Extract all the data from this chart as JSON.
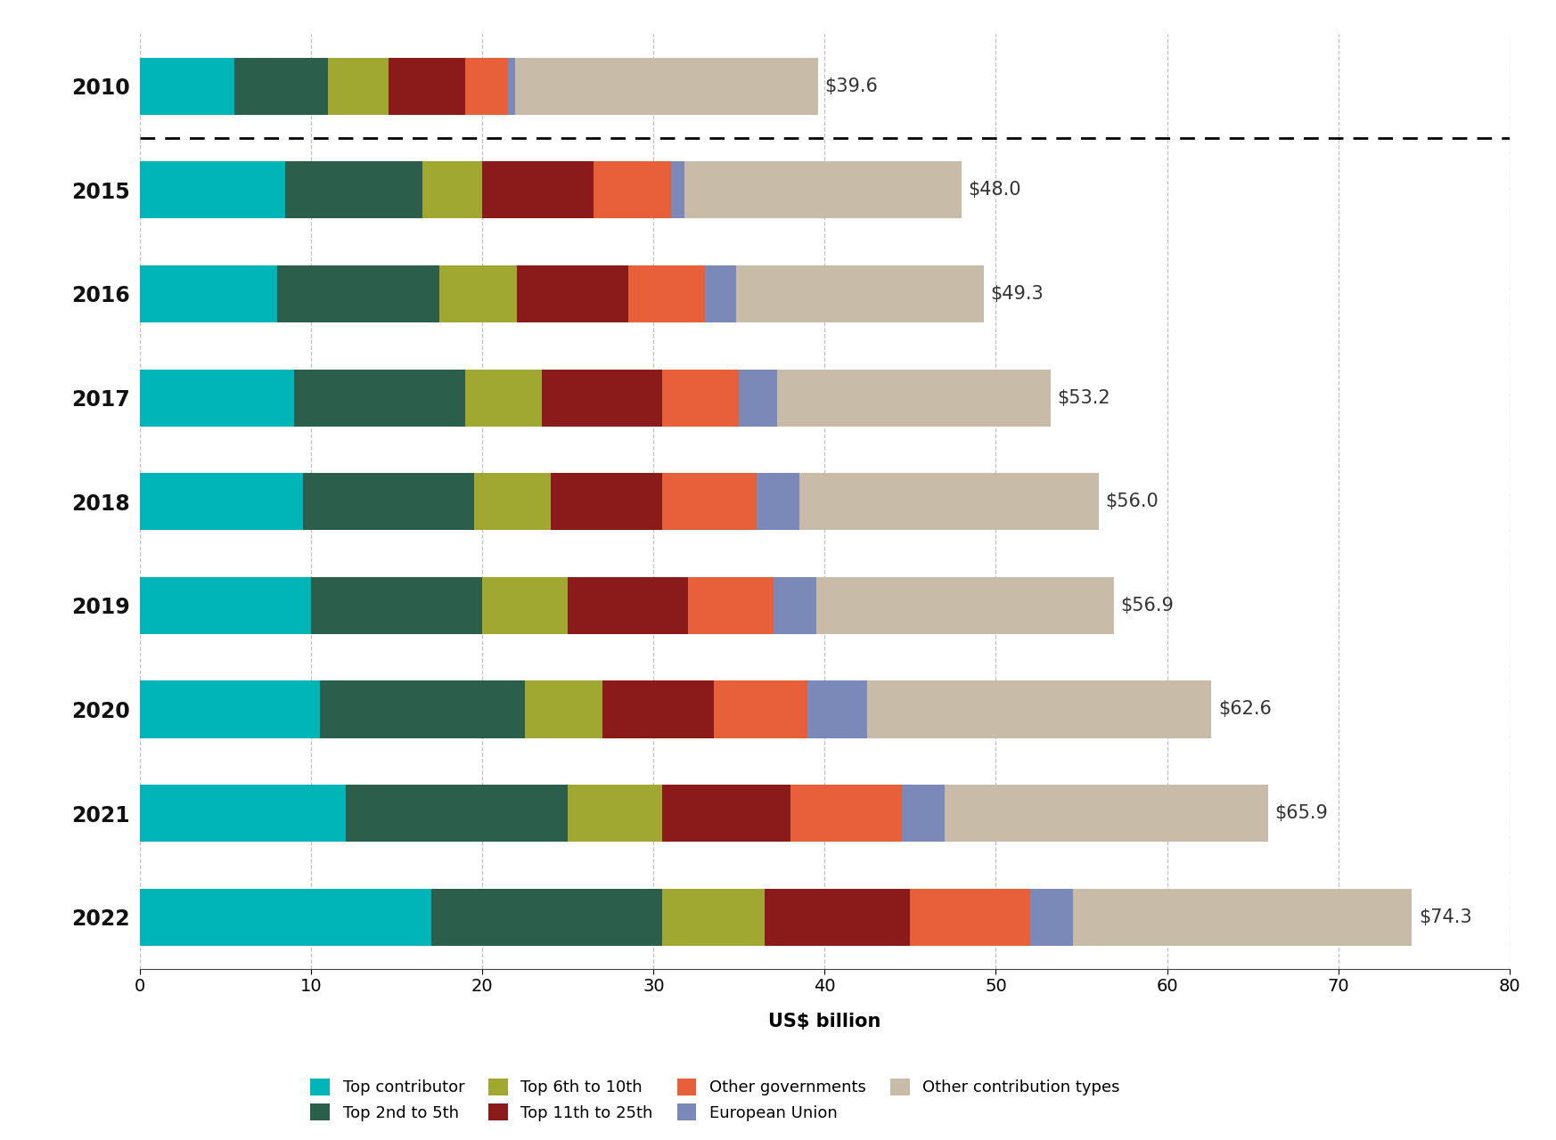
{
  "years": [
    "2010",
    "2015",
    "2016",
    "2017",
    "2018",
    "2019",
    "2020",
    "2021",
    "2022"
  ],
  "totals": [
    39.6,
    48.0,
    49.3,
    53.2,
    56.0,
    56.9,
    62.6,
    65.9,
    74.3
  ],
  "segments": {
    "Top contributor": [
      5.5,
      8.5,
      8.0,
      9.0,
      9.5,
      10.0,
      10.5,
      12.0,
      17.0
    ],
    "Top 2nd to 5th": [
      5.5,
      8.0,
      9.5,
      10.0,
      10.0,
      10.0,
      12.0,
      13.0,
      13.5
    ],
    "Top 6th to 10th": [
      3.5,
      3.5,
      4.5,
      4.5,
      4.5,
      5.0,
      4.5,
      5.5,
      6.0
    ],
    "Top 11th to 25th": [
      4.5,
      6.5,
      6.5,
      7.0,
      6.5,
      7.0,
      6.5,
      7.5,
      8.5
    ],
    "Other governments": [
      2.5,
      4.5,
      4.5,
      4.5,
      5.5,
      5.0,
      5.5,
      6.5,
      7.0
    ],
    "European Union": [
      0.4,
      0.8,
      1.8,
      2.2,
      2.5,
      2.5,
      3.5,
      2.5,
      2.5
    ],
    "Other contribution types": [
      17.7,
      16.2,
      14.5,
      16.0,
      17.5,
      17.4,
      20.1,
      18.9,
      19.8
    ]
  },
  "colors": {
    "Top contributor": "#00B5B8",
    "Top 2nd to 5th": "#2B5F4B",
    "Top 6th to 10th": "#A0A832",
    "Top 11th to 25th": "#8B1A1A",
    "Other governments": "#E8603A",
    "European Union": "#7B89B8",
    "Other contribution types": "#C8BCA8"
  },
  "xlabel": "US$ billion",
  "xlim": [
    0,
    80
  ],
  "xticks": [
    0,
    10,
    20,
    30,
    40,
    50,
    60,
    70,
    80
  ],
  "background_color": "#FFFFFF",
  "label_fontsize": 15,
  "tick_fontsize": 14,
  "year_fontsize": 17,
  "total_fontsize": 15,
  "legend_fontsize": 13,
  "bar_height": 0.55
}
